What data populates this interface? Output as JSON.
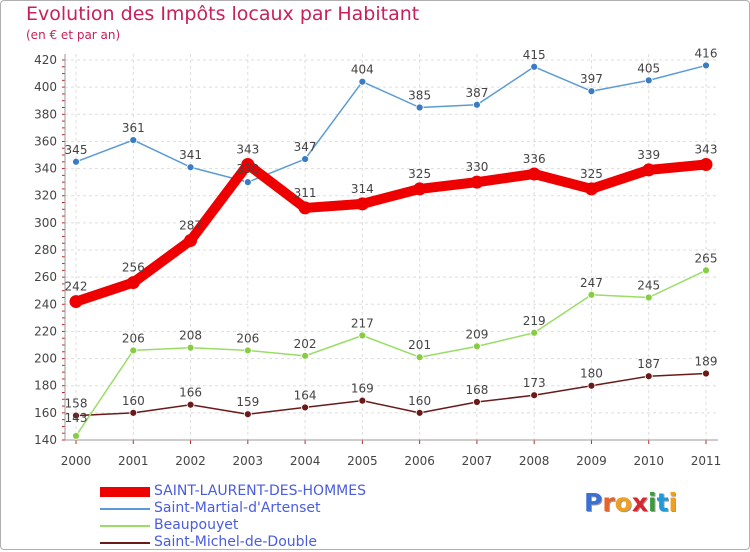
{
  "title": "Evolution des Impôts locaux par Habitant",
  "subtitle": "(en € et par an)",
  "logo": "Proxiti",
  "chart_data": {
    "type": "line",
    "x": [
      2000,
      2001,
      2002,
      2003,
      2004,
      2005,
      2006,
      2007,
      2008,
      2009,
      2010,
      2011
    ],
    "ylim": [
      140,
      420
    ],
    "yticks": [
      140,
      160,
      180,
      200,
      220,
      240,
      260,
      280,
      300,
      320,
      340,
      360,
      380,
      400,
      420
    ],
    "grid": true,
    "legend_position": "bottom",
    "series": [
      {
        "name": "SAINT-LAURENT-DES-HOMMES",
        "color": "#ee0000",
        "values": [
          242,
          256,
          287,
          343,
          311,
          314,
          325,
          330,
          336,
          325,
          339,
          343
        ]
      },
      {
        "name": "Saint-Martial-d'Artenset",
        "color": "#5b9bd5",
        "values": [
          345,
          361,
          341,
          330,
          347,
          404,
          385,
          387,
          415,
          397,
          405,
          416
        ]
      },
      {
        "name": "Beaupouyet",
        "color": "#99dd66",
        "values": [
          143,
          206,
          208,
          206,
          202,
          217,
          201,
          209,
          219,
          247,
          245,
          265
        ]
      },
      {
        "name": "Saint-Michel-de-Double",
        "color": "#6b1a1a",
        "values": [
          158,
          160,
          166,
          159,
          164,
          169,
          160,
          168,
          173,
          180,
          187,
          189
        ]
      }
    ],
    "data_labels": [
      [
        "242",
        "256",
        "287",
        "343",
        "311",
        "314",
        "325",
        "330",
        "336",
        "325",
        "339",
        "343"
      ],
      [
        "345",
        "361",
        "341",
        "330",
        "347",
        "404",
        "385",
        "387",
        "415",
        "397",
        "405",
        "416"
      ],
      [
        "143",
        "206",
        "208",
        "206",
        "202",
        "217",
        "201",
        "209",
        "219",
        "247",
        "245",
        "265"
      ],
      [
        "158",
        "160",
        "166",
        "159",
        "164",
        "169",
        "160",
        "168",
        "173",
        "180",
        "187",
        "189"
      ]
    ]
  }
}
